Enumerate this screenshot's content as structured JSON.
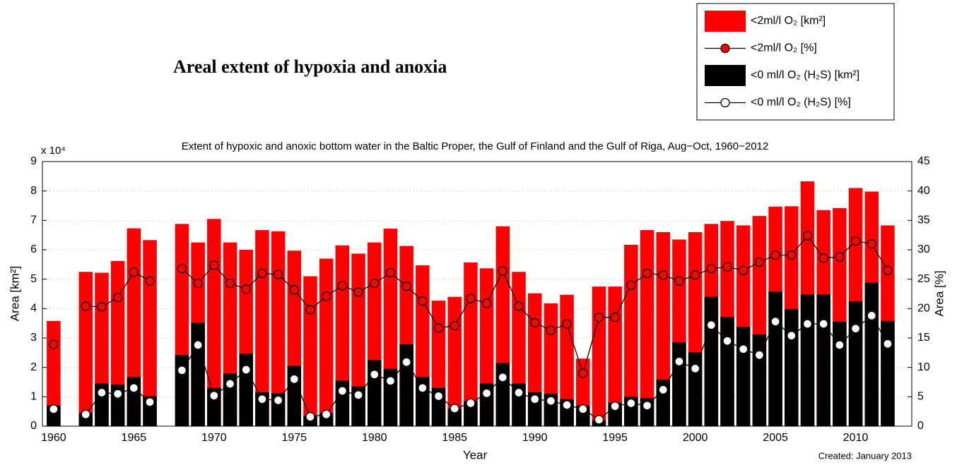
{
  "heading": "Areal extent of hypoxia and anoxia",
  "chart_data": {
    "type": "bar",
    "bar_mode": "overlay",
    "title": "Extent of hypoxic and anoxic bottom water in the Baltic Proper, the Gulf of Finland and the Gulf of Riga, Aug−Oct, 1960−2012",
    "y_multiplier": "x 10⁴",
    "xlabel": "Year",
    "ylabel": "Area [km²]",
    "y2label": "Area [%]",
    "note": "Created: January 2013",
    "legend": "upper-right",
    "grid": true,
    "x": [
      1960,
      1961,
      1962,
      1963,
      1964,
      1965,
      1966,
      1967,
      1968,
      1969,
      1970,
      1971,
      1972,
      1973,
      1974,
      1975,
      1976,
      1977,
      1978,
      1979,
      1980,
      1981,
      1982,
      1983,
      1984,
      1985,
      1986,
      1987,
      1988,
      1989,
      1990,
      1991,
      1992,
      1993,
      1994,
      1995,
      1996,
      1997,
      1998,
      1999,
      2000,
      2001,
      2002,
      2003,
      2004,
      2005,
      2006,
      2007,
      2008,
      2009,
      2010,
      2011,
      2012
    ],
    "xlim": [
      1959.3,
      2013.5
    ],
    "xticks": [
      1960,
      1965,
      1970,
      1975,
      1980,
      1985,
      1990,
      1995,
      2000,
      2005,
      2010
    ],
    "ylim": [
      0,
      9
    ],
    "yticks": [
      0,
      1,
      2,
      3,
      4,
      5,
      6,
      7,
      8,
      9
    ],
    "y2lim": [
      0,
      45
    ],
    "y2ticks": [
      0,
      5,
      10,
      15,
      20,
      25,
      30,
      35,
      40,
      45
    ],
    "series": [
      {
        "name": "<2ml/l O₂ [km²]",
        "type": "bar",
        "color": "#ff0000",
        "values": [
          3.58,
          null,
          5.25,
          5.22,
          5.62,
          6.73,
          6.33,
          null,
          6.88,
          6.25,
          7.05,
          6.25,
          6.0,
          6.67,
          6.63,
          5.97,
          5.1,
          5.7,
          6.15,
          5.87,
          6.25,
          6.72,
          6.13,
          5.47,
          4.27,
          4.4,
          5.57,
          5.37,
          6.8,
          5.25,
          4.52,
          4.18,
          4.47,
          2.3,
          4.75,
          4.75,
          6.17,
          6.67,
          6.6,
          6.35,
          6.6,
          6.88,
          6.98,
          6.83,
          7.15,
          7.47,
          7.48,
          8.33,
          7.35,
          7.42,
          8.1,
          7.98,
          6.83
        ]
      },
      {
        "name": "<2ml/l O₂ [%]",
        "type": "line",
        "axis": "y2",
        "color": "#000000",
        "marker_color": "#ff0000",
        "values": [
          13.9,
          null,
          20.4,
          20.3,
          21.9,
          26.2,
          24.7,
          null,
          26.8,
          24.3,
          27.4,
          24.3,
          23.3,
          26,
          25.8,
          23.2,
          19.8,
          22.1,
          23.9,
          22.8,
          24.3,
          26.1,
          23.8,
          21.3,
          16.7,
          17.1,
          21.7,
          20.9,
          26.4,
          20.4,
          17.6,
          16.3,
          17.4,
          9,
          18.5,
          18.5,
          24,
          26,
          25.7,
          24.7,
          25.7,
          26.8,
          27.1,
          26.5,
          27.9,
          29.1,
          29.1,
          32.4,
          28.6,
          28.8,
          31.5,
          31,
          26.5
        ]
      },
      {
        "name": "<0 ml/l O₂ (H₂S) [km²]",
        "type": "bar",
        "color": "#000000",
        "values": [
          0.7,
          null,
          0.45,
          1.45,
          1.42,
          1.67,
          1.02,
          null,
          2.42,
          3.52,
          1.3,
          1.8,
          2.47,
          1.15,
          1.12,
          2.05,
          0.35,
          0.45,
          1.55,
          1.35,
          2.25,
          1.95,
          2.78,
          1.67,
          1.3,
          0.6,
          0.85,
          1.45,
          2.15,
          1.45,
          1.15,
          1.1,
          0.92,
          0.7,
          0.2,
          0.8,
          1.0,
          0.95,
          1.58,
          2.85,
          2.52,
          4.4,
          3.72,
          3.38,
          3.12,
          4.58,
          3.98,
          4.48,
          4.48,
          3.55,
          4.25,
          4.88,
          3.58
        ]
      },
      {
        "name": "<0 ml/l O₂ (H₂S) [%]",
        "type": "line",
        "axis": "y2",
        "color": "#000000",
        "marker_color": "#ffffff",
        "values": [
          2.9,
          null,
          2,
          5.7,
          5.5,
          6.5,
          4.1,
          null,
          9.5,
          13.8,
          5.2,
          7.2,
          9.6,
          4.6,
          4.4,
          8,
          1.6,
          2,
          6,
          5.3,
          8.8,
          7.7,
          10.9,
          6.5,
          5.1,
          3,
          3.9,
          5.6,
          8.3,
          5.7,
          4.6,
          4.3,
          3.6,
          2.9,
          1.1,
          3.4,
          3.9,
          3.5,
          6.2,
          11,
          9.8,
          17.2,
          14.5,
          13.1,
          12.1,
          17.8,
          15.4,
          17.4,
          17.4,
          13.8,
          16.6,
          18.8,
          14
        ]
      }
    ]
  }
}
